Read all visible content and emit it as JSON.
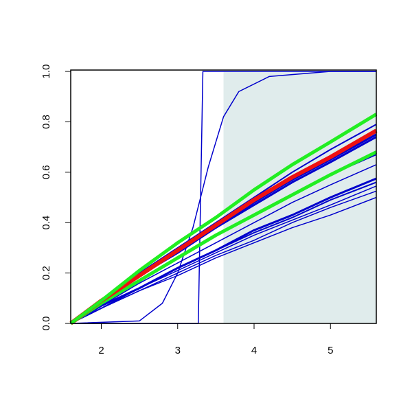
{
  "chart_data": {
    "type": "line",
    "xlim": [
      1.6,
      5.6
    ],
    "ylim": [
      0,
      1
    ],
    "xticks": [
      2,
      3,
      4,
      5
    ],
    "yticks": [
      {
        "value": 0,
        "label": "0.0"
      },
      0.2,
      0.4,
      0.6,
      0.8,
      {
        "value": 1,
        "label": "1.0"
      }
    ],
    "shaded_region": [
      3.6,
      5.6
    ],
    "shade_color": "#e0ecec",
    "x": [
      1.6,
      2,
      2.5,
      3,
      3.5,
      4,
      4.5,
      5,
      5.6
    ],
    "series": [
      {
        "color": "#0000cc",
        "width": 2,
        "values": [
          0,
          0.09,
          0.2,
          0.3,
          0.4,
          0.5,
          0.6,
          0.69,
          0.79
        ]
      },
      {
        "color": "#0000cc",
        "width": 3,
        "values": [
          0,
          0.09,
          0.19,
          0.29,
          0.38,
          0.48,
          0.57,
          0.65,
          0.75
        ]
      },
      {
        "color": "#0000cc",
        "width": 3,
        "values": [
          0,
          0.08,
          0.19,
          0.28,
          0.38,
          0.47,
          0.56,
          0.64,
          0.74
        ]
      },
      {
        "color": "#0000cc",
        "width": 2,
        "values": [
          0,
          0.08,
          0.17,
          0.26,
          0.35,
          0.43,
          0.51,
          0.59,
          0.67
        ]
      },
      {
        "color": "#0000cc",
        "width": 1.5,
        "values": [
          0,
          0.07,
          0.16,
          0.24,
          0.32,
          0.4,
          0.48,
          0.55,
          0.63
        ]
      },
      {
        "color": "#0000cc",
        "width": 3,
        "values": [
          0,
          0.07,
          0.14,
          0.22,
          0.29,
          0.37,
          0.43,
          0.5,
          0.575
        ]
      },
      {
        "color": "#0000cc",
        "width": 2,
        "values": [
          0,
          0.06,
          0.14,
          0.22,
          0.29,
          0.36,
          0.42,
          0.49,
          0.56
        ]
      },
      {
        "color": "#0000cc",
        "width": 1.5,
        "values": [
          0,
          0.06,
          0.14,
          0.21,
          0.28,
          0.35,
          0.41,
          0.47,
          0.545
        ]
      },
      {
        "color": "#0000cc",
        "width": 1.5,
        "values": [
          0,
          0.06,
          0.13,
          0.2,
          0.27,
          0.33,
          0.4,
          0.46,
          0.525
        ]
      },
      {
        "color": "#0000cc",
        "width": 1.5,
        "values": [
          0,
          0.06,
          0.13,
          0.19,
          0.26,
          0.32,
          0.38,
          0.43,
          0.5
        ]
      },
      {
        "color": "#0000cc",
        "width": 1.5,
        "x": [
          1.6,
          3.27,
          3.3,
          3.33,
          5.6
        ],
        "values": [
          0,
          0,
          0.5,
          1,
          1
        ]
      },
      {
        "color": "#0000cc",
        "width": 1.5,
        "x": [
          1.6,
          2.5,
          2.8,
          3.0,
          3.2,
          3.3,
          3.4,
          3.6,
          3.8,
          4.2,
          5,
          5.6
        ],
        "values": [
          0,
          0.01,
          0.08,
          0.2,
          0.38,
          0.5,
          0.62,
          0.82,
          0.92,
          0.98,
          1,
          1
        ]
      },
      {
        "color": "#22ee22",
        "width": 5,
        "values": [
          0,
          0.08,
          0.17,
          0.26,
          0.35,
          0.43,
          0.51,
          0.59,
          0.68
        ]
      },
      {
        "color": "#ee1111",
        "width": 6,
        "values": [
          0,
          0.09,
          0.19,
          0.29,
          0.39,
          0.49,
          0.58,
          0.66,
          0.765
        ]
      },
      {
        "color": "#22ee22",
        "width": 5,
        "values": [
          0,
          0.09,
          0.21,
          0.32,
          0.42,
          0.53,
          0.63,
          0.72,
          0.83
        ]
      }
    ]
  }
}
